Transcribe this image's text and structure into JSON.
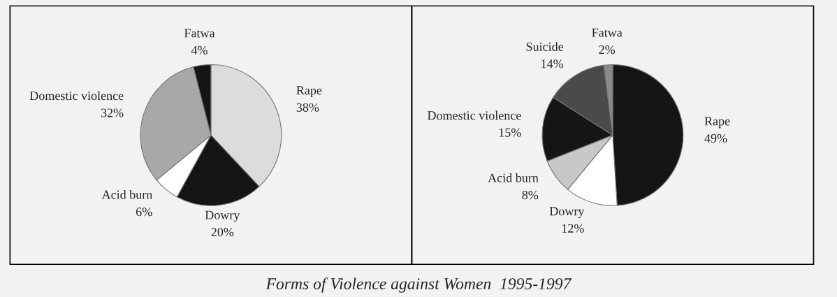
{
  "chart_data": [
    {
      "type": "pie",
      "title": "Forms of Violence against Women  1995-1997",
      "categories": [
        "Rape",
        "Dowry",
        "Acid burn",
        "Domestic violence",
        "Fatwa"
      ],
      "values": [
        38,
        20,
        6,
        32,
        4
      ],
      "value_labels": [
        "38%",
        "20%",
        "6%",
        "32%",
        "4%"
      ],
      "colors": [
        "#dcdcdc",
        "#151515",
        "#ffffff",
        "#a8a8a8",
        "#151515"
      ]
    },
    {
      "type": "pie",
      "categories": [
        "Rape",
        "Dowry",
        "Acid burn",
        "Domestic violence",
        "Suicide",
        "Fatwa"
      ],
      "values": [
        49,
        12,
        8,
        15,
        14,
        2
      ],
      "value_labels": [
        "49%",
        "12%",
        "8%",
        "15%",
        "14%",
        "2%"
      ],
      "colors": [
        "#151515",
        "#ffffff",
        "#c8c8c8",
        "#151515",
        "#4a4a4a",
        "#8a8a8a"
      ]
    }
  ]
}
